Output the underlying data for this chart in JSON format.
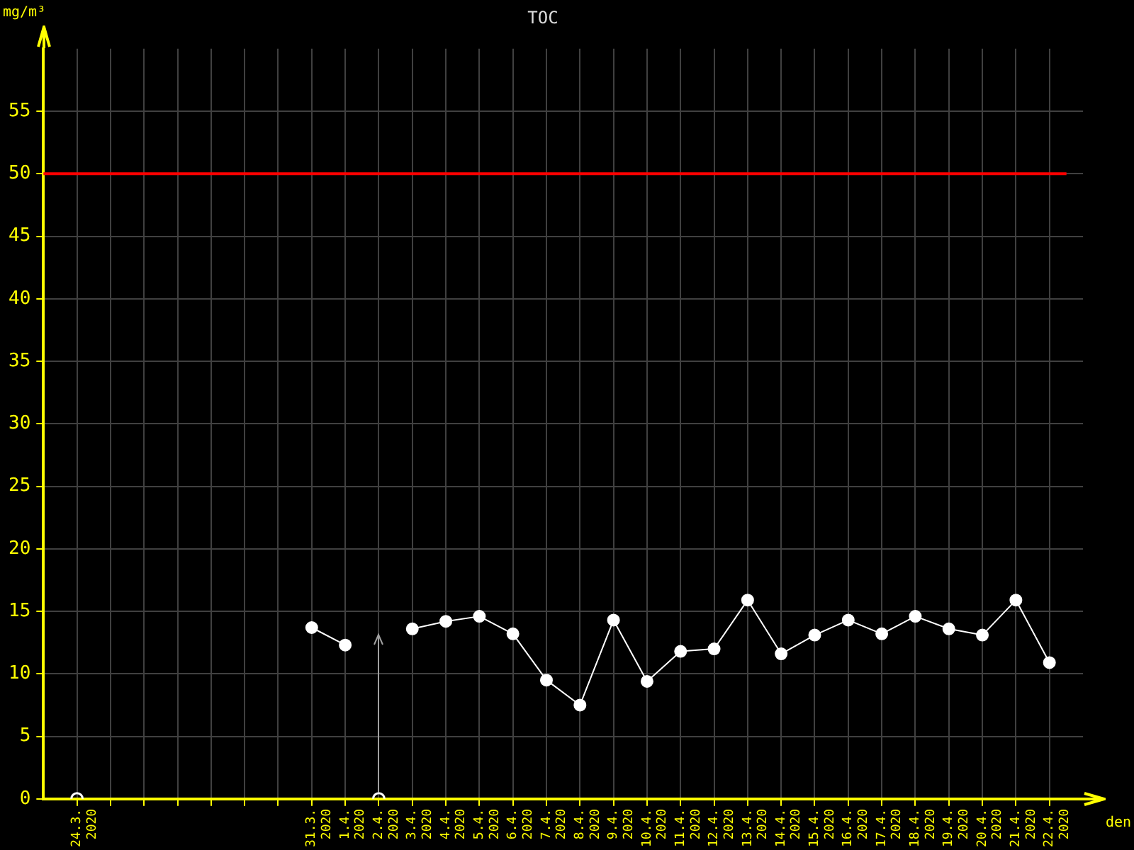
{
  "chart_data": {
    "type": "line",
    "title": "TOC",
    "ylabel": "mg/m³",
    "xlabel": "den",
    "categories": [
      "24.3. 2020",
      null,
      null,
      null,
      null,
      null,
      null,
      "31.3. 2020",
      "1.4. 2020",
      "2.4. 2020",
      "3.4. 2020",
      "4.4. 2020",
      "5.4. 2020",
      "6.4. 2020",
      "7.4. 2020",
      "8.4. 2020",
      "9.4. 2020",
      "10.4. 2020",
      "11.4. 2020",
      "12.4. 2020",
      "13.4. 2020",
      "14.4. 2020",
      "15.4. 2020",
      "16.4. 2020",
      "17.4. 2020",
      "18.4. 2020",
      "19.4. 2020",
      "20.4. 2020",
      "21.4. 2020",
      "22.4. 2020"
    ],
    "series": [
      {
        "color": "#ffffff",
        "marker": "circle",
        "values": [
          null,
          null,
          null,
          null,
          null,
          null,
          null,
          13.7,
          12.3,
          null,
          13.6,
          14.2,
          14.6,
          13.2,
          9.5,
          7.5,
          14.3,
          9.4,
          11.8,
          12.0,
          15.9,
          11.6,
          13.1,
          14.3,
          13.2,
          14.6,
          13.6,
          13.1,
          15.9,
          10.9
        ]
      },
      {
        "type": "scatter",
        "color": "#ffffff",
        "marker": "circle",
        "x": [
          "24.3. 2020",
          "2.4. 2020"
        ],
        "values": [
          0,
          0
        ]
      }
    ],
    "ylim": [
      0,
      60
    ],
    "yticks": [
      0,
      5,
      10,
      15,
      20,
      25,
      30,
      35,
      40,
      45,
      50,
      55
    ],
    "ref_lines": [
      {
        "axis": "y",
        "value": 50,
        "color": "#ff0000"
      }
    ],
    "grid": true,
    "legend": false
  }
}
